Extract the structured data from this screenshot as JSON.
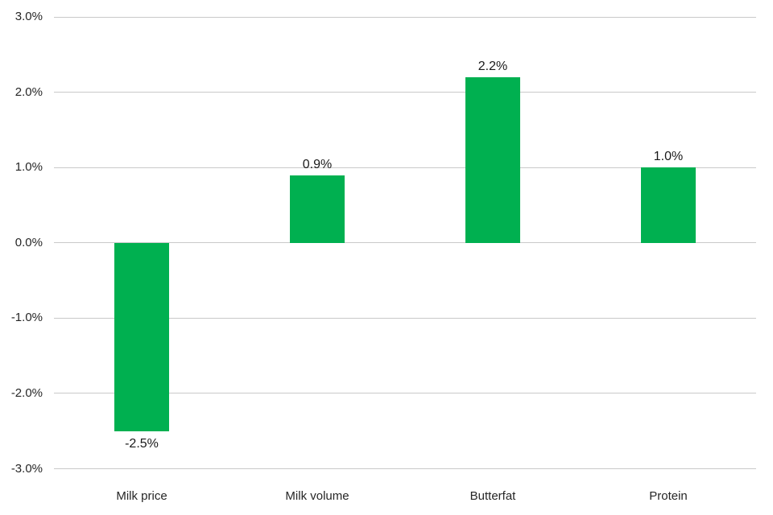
{
  "chart_data": {
    "type": "bar",
    "title": "",
    "xlabel": "",
    "ylabel": "",
    "categories": [
      "Milk price",
      "Milk volume",
      "Butterfat",
      "Protein"
    ],
    "values": [
      -2.5,
      0.9,
      2.2,
      1.0
    ],
    "data_labels": [
      "-2.5%",
      "0.9%",
      "2.2%",
      "1.0%"
    ],
    "ylim": [
      -3,
      3
    ],
    "ytick_step": 1,
    "ytick_labels": [
      "3.0%",
      "2.0%",
      "1.0%",
      "0.0%",
      "-1.0%",
      "-2.0%",
      "-3.0%"
    ],
    "grid": true,
    "legend": "none",
    "colors": {
      "bar": "#00B050",
      "gridline": "#C9C9C9",
      "tick_text": "#262626",
      "data_label_text": "#1a1a1a",
      "category_text": "#262626",
      "background": "#ffffff"
    }
  }
}
